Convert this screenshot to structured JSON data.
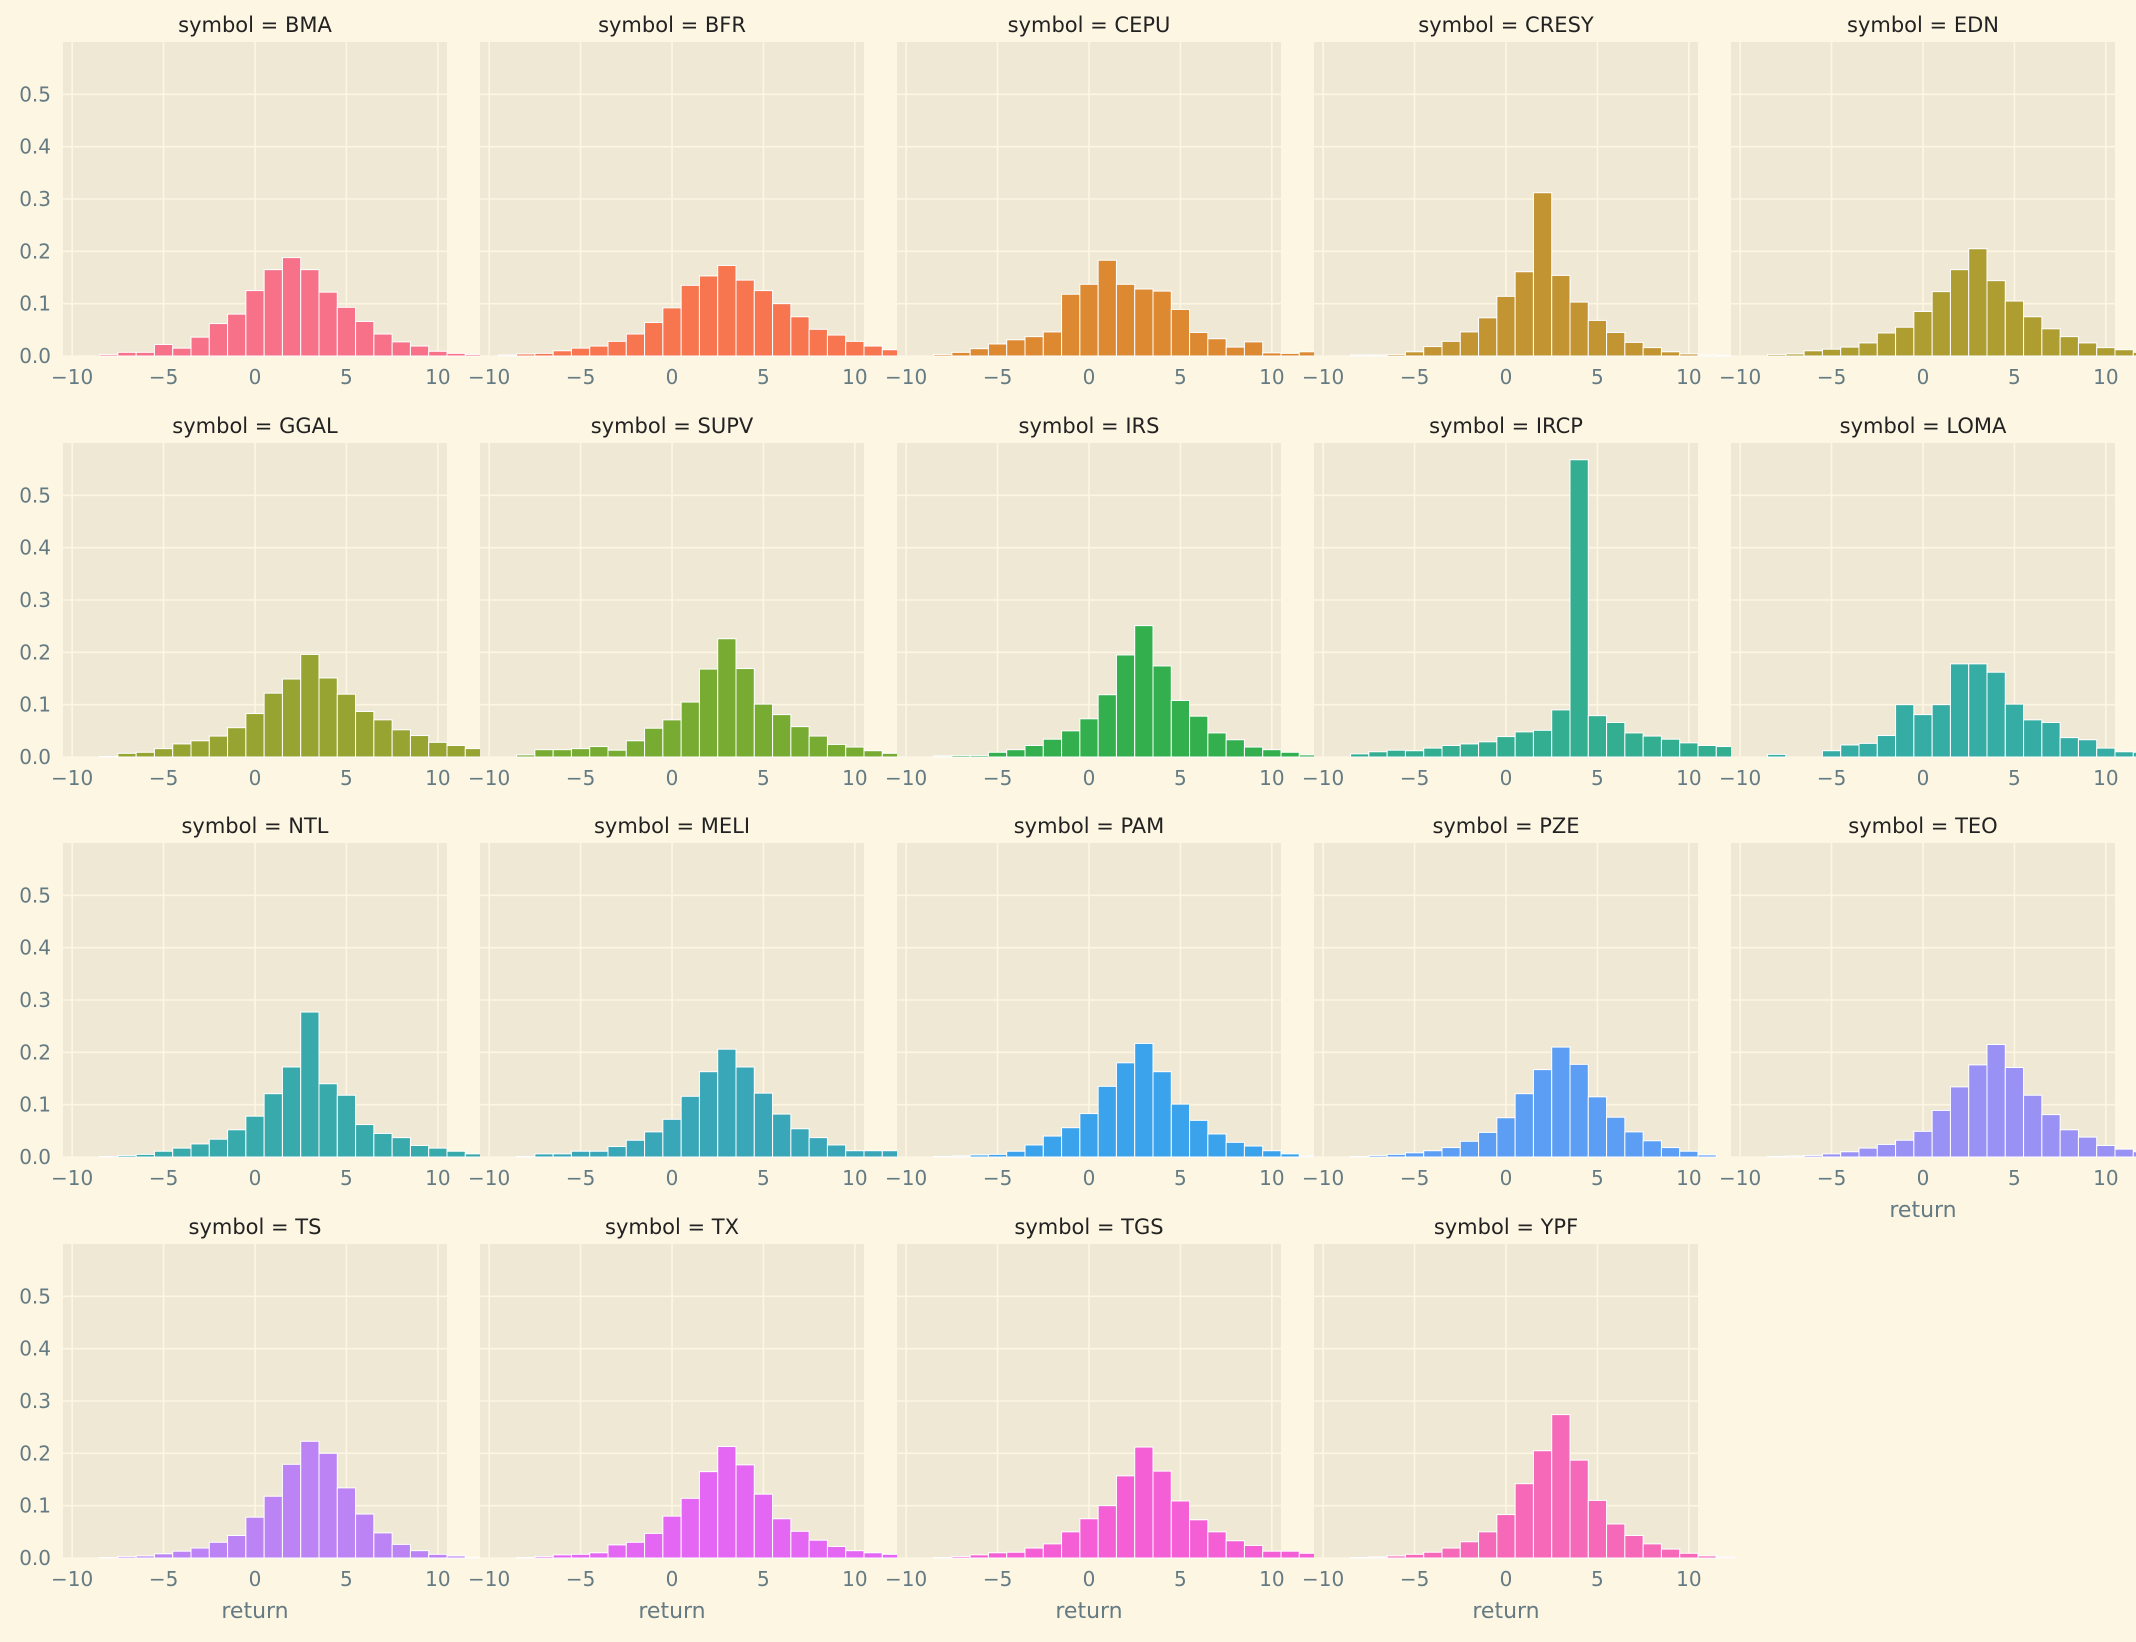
{
  "figure": {
    "background": "#fdf6e3",
    "panel_background": "#eee8d5",
    "grid_color": "#fdf6e3",
    "text_color": "#657b83",
    "title_color": "#222222"
  },
  "chart_data": {
    "type": "bar",
    "layout": "facet-grid",
    "columns": 5,
    "xlim": [
      -10.5,
      10.5
    ],
    "ylim": [
      0,
      0.6
    ],
    "xticks": [
      -10,
      -5,
      0,
      5,
      10
    ],
    "yticks": [
      0.0,
      0.1,
      0.2,
      0.3,
      0.4,
      0.5
    ],
    "xlabel": "return",
    "bin_edges_start": -9.5,
    "bin_width": 1,
    "grid": true,
    "panels": [
      {
        "title": "symbol = BMA",
        "color": "#f77189",
        "values": [
          0.0,
          0.003,
          0.007,
          0.007,
          0.022,
          0.015,
          0.036,
          0.062,
          0.08,
          0.125,
          0.165,
          0.188,
          0.165,
          0.122,
          0.093,
          0.066,
          0.042,
          0.027,
          0.019,
          0.009,
          0.005,
          0.003
        ]
      },
      {
        "title": "symbol = BFR",
        "color": "#f7754f",
        "values": [
          0.002,
          0.004,
          0.005,
          0.01,
          0.015,
          0.019,
          0.028,
          0.042,
          0.064,
          0.092,
          0.135,
          0.153,
          0.173,
          0.145,
          0.125,
          0.1,
          0.075,
          0.051,
          0.04,
          0.028,
          0.019,
          0.012,
          0.008,
          0.003,
          0.002
        ]
      },
      {
        "title": "symbol = CEPU",
        "color": "#dc8932",
        "values": [
          0.0,
          0.003,
          0.007,
          0.014,
          0.023,
          0.031,
          0.037,
          0.046,
          0.118,
          0.137,
          0.183,
          0.137,
          0.128,
          0.124,
          0.089,
          0.045,
          0.033,
          0.017,
          0.027,
          0.006,
          0.005,
          0.008,
          0.004
        ]
      },
      {
        "title": "symbol = CRESY",
        "color": "#c39532",
        "values": [
          0.0,
          0.002,
          0.002,
          0.003,
          0.008,
          0.018,
          0.028,
          0.046,
          0.073,
          0.114,
          0.161,
          0.312,
          0.154,
          0.103,
          0.068,
          0.045,
          0.026,
          0.016,
          0.008,
          0.004,
          0.002,
          0.001
        ]
      },
      {
        "title": "symbol = EDN",
        "color": "#ae9d31",
        "values": [
          0.0,
          0.003,
          0.004,
          0.01,
          0.013,
          0.017,
          0.025,
          0.044,
          0.055,
          0.085,
          0.123,
          0.165,
          0.205,
          0.144,
          0.105,
          0.075,
          0.052,
          0.037,
          0.025,
          0.016,
          0.012,
          0.007,
          0.004
        ]
      },
      {
        "title": "symbol = GGAL",
        "color": "#97a431",
        "values": [
          0.0,
          0.001,
          0.007,
          0.009,
          0.016,
          0.025,
          0.031,
          0.04,
          0.056,
          0.083,
          0.122,
          0.149,
          0.196,
          0.151,
          0.12,
          0.087,
          0.071,
          0.052,
          0.041,
          0.028,
          0.022,
          0.016,
          0.014,
          0.003
        ]
      },
      {
        "title": "symbol = SUPV",
        "color": "#77ab31",
        "values": [
          0.0,
          0.004,
          0.014,
          0.014,
          0.016,
          0.02,
          0.013,
          0.031,
          0.055,
          0.071,
          0.105,
          0.168,
          0.226,
          0.169,
          0.101,
          0.081,
          0.058,
          0.04,
          0.024,
          0.019,
          0.012,
          0.007,
          0.004,
          0.002
        ]
      },
      {
        "title": "symbol = IRS",
        "color": "#33b04d",
        "values": [
          0.0,
          0.002,
          0.003,
          0.003,
          0.009,
          0.014,
          0.022,
          0.034,
          0.05,
          0.073,
          0.119,
          0.195,
          0.251,
          0.174,
          0.108,
          0.078,
          0.046,
          0.033,
          0.019,
          0.014,
          0.009,
          0.004,
          0.001
        ]
      },
      {
        "title": "symbol = IRCP",
        "color": "#34ae91",
        "values": [
          0.0,
          0.006,
          0.01,
          0.013,
          0.012,
          0.017,
          0.022,
          0.025,
          0.029,
          0.039,
          0.048,
          0.051,
          0.09,
          0.568,
          0.079,
          0.066,
          0.046,
          0.04,
          0.034,
          0.027,
          0.022,
          0.02,
          0.017,
          0.012,
          0.008,
          0.006
        ]
      },
      {
        "title": "symbol = LOMA",
        "color": "#36ada4",
        "values": [
          0.0,
          0.005,
          0.0,
          0.0,
          0.012,
          0.023,
          0.026,
          0.041,
          0.1,
          0.081,
          0.1,
          0.178,
          0.178,
          0.162,
          0.101,
          0.071,
          0.066,
          0.037,
          0.033,
          0.017,
          0.01,
          0.009,
          0.005
        ]
      },
      {
        "title": "symbol = NTL",
        "color": "#38aaac",
        "values": [
          0.0,
          0.001,
          0.003,
          0.005,
          0.011,
          0.017,
          0.025,
          0.034,
          0.052,
          0.078,
          0.121,
          0.172,
          0.277,
          0.14,
          0.118,
          0.062,
          0.045,
          0.037,
          0.022,
          0.017,
          0.011,
          0.006,
          0.003
        ]
      },
      {
        "title": "symbol = MELI",
        "color": "#39a7b7",
        "values": [
          0.0,
          0.001,
          0.006,
          0.006,
          0.011,
          0.011,
          0.02,
          0.032,
          0.048,
          0.072,
          0.116,
          0.163,
          0.206,
          0.172,
          0.122,
          0.082,
          0.054,
          0.037,
          0.023,
          0.012,
          0.012,
          0.012
        ]
      },
      {
        "title": "symbol = PAM",
        "color": "#3ba3ec",
        "values": [
          0.0,
          0.001,
          0.002,
          0.004,
          0.005,
          0.011,
          0.023,
          0.04,
          0.056,
          0.083,
          0.135,
          0.18,
          0.217,
          0.163,
          0.101,
          0.07,
          0.044,
          0.028,
          0.021,
          0.012,
          0.006,
          0.002
        ]
      },
      {
        "title": "symbol = PZE",
        "color": "#5b9ef4",
        "values": [
          0.0,
          0.001,
          0.003,
          0.005,
          0.008,
          0.012,
          0.018,
          0.03,
          0.047,
          0.075,
          0.121,
          0.167,
          0.21,
          0.177,
          0.115,
          0.076,
          0.048,
          0.031,
          0.018,
          0.011,
          0.004
        ]
      },
      {
        "title": "symbol = TEO",
        "color": "#9a91f4",
        "values": [
          0.0,
          0.001,
          0.002,
          0.003,
          0.006,
          0.01,
          0.017,
          0.024,
          0.032,
          0.049,
          0.089,
          0.134,
          0.176,
          0.215,
          0.171,
          0.118,
          0.081,
          0.052,
          0.038,
          0.022,
          0.015,
          0.01,
          0.005,
          0.003
        ]
      },
      {
        "title": "symbol = TS",
        "color": "#bb83f4",
        "values": [
          0.0,
          0.001,
          0.003,
          0.004,
          0.008,
          0.013,
          0.019,
          0.03,
          0.043,
          0.078,
          0.118,
          0.179,
          0.223,
          0.2,
          0.134,
          0.084,
          0.048,
          0.026,
          0.014,
          0.007,
          0.004,
          0.001
        ]
      },
      {
        "title": "symbol = TX",
        "color": "#e467f3",
        "values": [
          0.0,
          0.001,
          0.003,
          0.006,
          0.007,
          0.01,
          0.025,
          0.03,
          0.047,
          0.08,
          0.114,
          0.165,
          0.213,
          0.178,
          0.122,
          0.075,
          0.051,
          0.034,
          0.022,
          0.014,
          0.01,
          0.007,
          0.005,
          0.002
        ]
      },
      {
        "title": "symbol = TGS",
        "color": "#f45fd6",
        "values": [
          0.0,
          0.001,
          0.003,
          0.006,
          0.01,
          0.011,
          0.019,
          0.027,
          0.05,
          0.075,
          0.1,
          0.157,
          0.212,
          0.166,
          0.109,
          0.073,
          0.05,
          0.033,
          0.024,
          0.013,
          0.013,
          0.009,
          0.005,
          0.003
        ]
      },
      {
        "title": "symbol = YPF",
        "color": "#f668b8",
        "values": [
          0.0,
          0.001,
          0.002,
          0.004,
          0.007,
          0.011,
          0.019,
          0.031,
          0.05,
          0.083,
          0.142,
          0.205,
          0.274,
          0.187,
          0.11,
          0.065,
          0.043,
          0.027,
          0.017,
          0.009,
          0.004,
          0.002
        ]
      }
    ]
  }
}
